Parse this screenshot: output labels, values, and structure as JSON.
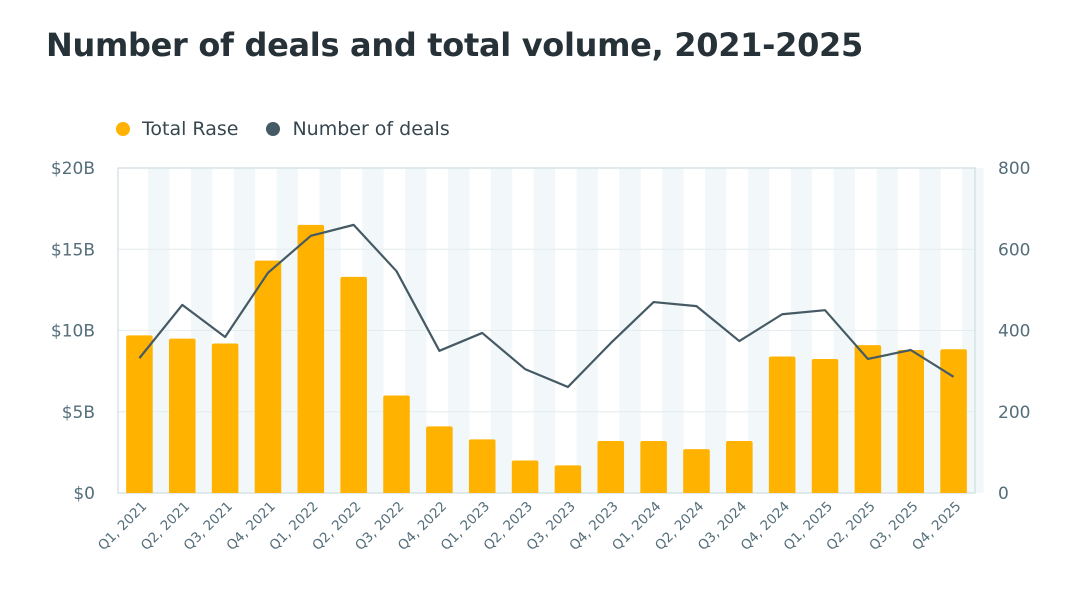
{
  "chart_data": {
    "type": "bar+line",
    "title": "Number of deals and total volume, 2021-2025",
    "categories": [
      "Q1, 2021",
      "Q2, 2021",
      "Q3, 2021",
      "Q4, 2021",
      "Q1, 2022",
      "Q2, 2022",
      "Q3, 2022",
      "Q4, 2022",
      "Q1, 2023",
      "Q2, 2023",
      "Q3, 2023",
      "Q4, 2023",
      "Q1, 2024",
      "Q2, 2024",
      "Q3, 2024",
      "Q4, 2024",
      "Q1, 2025",
      "Q2, 2025",
      "Q3, 2025",
      "Q4, 2025"
    ],
    "series": [
      {
        "name": "Total Rase",
        "type": "bar",
        "axis": "left",
        "color": "#FFB300",
        "unit": "$B",
        "values": [
          9.7,
          9.5,
          9.2,
          14.3,
          16.5,
          13.3,
          6.0,
          4.1,
          3.3,
          2.0,
          1.7,
          3.2,
          3.2,
          2.7,
          3.2,
          8.4,
          8.25,
          9.1,
          8.8,
          8.85
        ]
      },
      {
        "name": "Number of deals",
        "type": "line",
        "axis": "right",
        "color": "#455A64",
        "values": [
          332,
          463,
          384,
          542,
          633,
          660,
          546,
          350,
          394,
          305,
          261,
          369,
          470,
          460,
          374,
          440,
          450,
          330,
          352,
          286
        ]
      }
    ],
    "y_left": {
      "ylim": [
        0,
        20
      ],
      "ticks": [
        0,
        5,
        10,
        15,
        20
      ],
      "tick_labels": [
        "$0",
        "$5B",
        "$10B",
        "$15B",
        "$20B"
      ]
    },
    "y_right": {
      "ylim": [
        0,
        800
      ],
      "ticks": [
        0,
        200,
        400,
        600,
        800
      ],
      "tick_labels": [
        "0",
        "200",
        "400",
        "600",
        "800"
      ]
    },
    "xlabel": "",
    "ylabel": "",
    "grid": true,
    "legend": "top-left"
  }
}
